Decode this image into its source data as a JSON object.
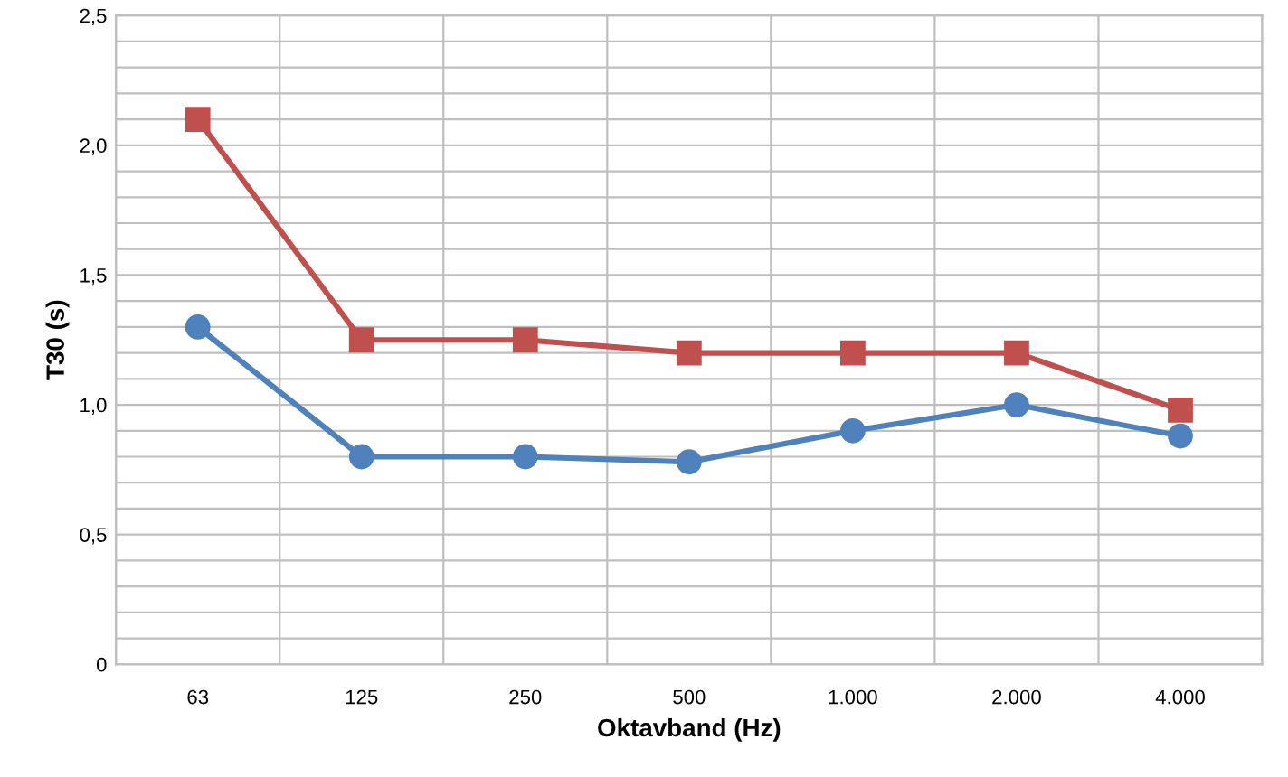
{
  "chart_data": {
    "type": "line",
    "xlabel": "Oktavband (Hz)",
    "ylabel": "T30 (s)",
    "categories": [
      "63",
      "125",
      "250",
      "500",
      "1.000",
      "2.000",
      "4.000"
    ],
    "series": [
      {
        "color": "#c0504d",
        "marker": "square",
        "values": [
          2.1,
          1.25,
          1.25,
          1.2,
          1.2,
          1.2,
          0.98
        ]
      },
      {
        "color": "#4f81bd",
        "marker": "circle",
        "values": [
          1.3,
          0.8,
          0.8,
          0.78,
          0.9,
          1.0,
          0.88
        ]
      }
    ],
    "ylim": [
      0,
      2.5
    ],
    "yticks": [
      0,
      {
        "value": 0.1,
        "label": null
      },
      {
        "value": 0.2,
        "label": null
      },
      {
        "value": 0.3,
        "label": null
      },
      {
        "value": 0.4,
        "label": null
      },
      {
        "value": 0.5,
        "label": "0,5"
      },
      {
        "value": 0.6,
        "label": null
      },
      {
        "value": 0.7,
        "label": null
      },
      {
        "value": 0.8,
        "label": null
      },
      {
        "value": 0.9,
        "label": null
      },
      {
        "value": 1.0,
        "label": "1,0"
      },
      {
        "value": 1.1,
        "label": null
      },
      {
        "value": 1.2,
        "label": null
      },
      {
        "value": 1.3,
        "label": null
      },
      {
        "value": 1.4,
        "label": null
      },
      {
        "value": 1.5,
        "label": "1,5"
      },
      {
        "value": 1.6,
        "label": null
      },
      {
        "value": 1.7,
        "label": null
      },
      {
        "value": 1.8,
        "label": null
      },
      {
        "value": 1.9,
        "label": null
      },
      {
        "value": 2.0,
        "label": "2,0"
      },
      {
        "value": 2.1,
        "label": null
      },
      {
        "value": 2.2,
        "label": null
      },
      {
        "value": 2.3,
        "label": null
      },
      {
        "value": 2.4,
        "label": null
      },
      {
        "value": 2.5,
        "label": "2,5"
      }
    ],
    "grid": true,
    "line_style": "solid"
  }
}
